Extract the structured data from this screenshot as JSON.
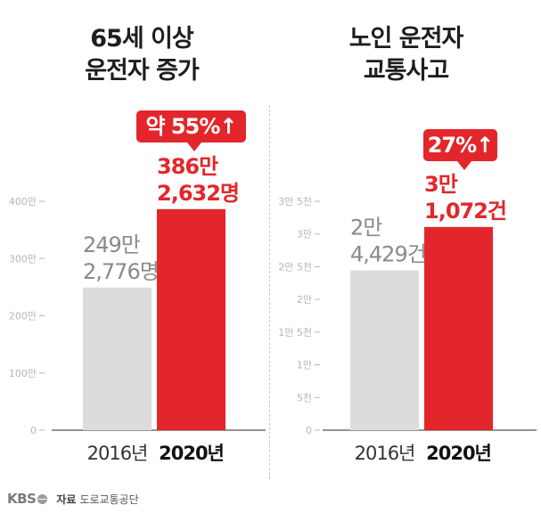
{
  "colors": {
    "accent_red": "#e3262b",
    "bar_gray": "#dcdcdc",
    "axis_gray": "#b5b5b5",
    "text_gray": "#8a8a8a"
  },
  "left_panel": {
    "title_line1": "65세 이상",
    "title_line2": "운전자 증가",
    "callout": "약 55%↑"
  },
  "right_panel": {
    "title_line1": "노인 운전자",
    "title_line2": "교통사고",
    "callout": "27%↑"
  },
  "chart_data": [
    {
      "type": "bar",
      "title": "65세 이상 운전자 증가",
      "categories": [
        "2016년",
        "2020년"
      ],
      "values": [
        2492776,
        3862632
      ],
      "value_labels": [
        [
          "249만",
          "2,776명"
        ],
        [
          "386만",
          "2,632명"
        ]
      ],
      "y_ticks": [
        0,
        1000000,
        2000000,
        3000000,
        4000000
      ],
      "y_tick_labels": [
        "0",
        "100만",
        "200만",
        "300만",
        "400만"
      ],
      "ylim": [
        0,
        4000000
      ],
      "annotation": "약 55%↑"
    },
    {
      "type": "bar",
      "title": "노인 운전자 교통사고",
      "categories": [
        "2016년",
        "2020년"
      ],
      "values": [
        24429,
        31072
      ],
      "value_labels": [
        [
          "2만",
          "4,429건"
        ],
        [
          "3만",
          "1,072건"
        ]
      ],
      "y_ticks": [
        0,
        5000,
        10000,
        15000,
        20000,
        25000,
        30000,
        35000
      ],
      "y_tick_labels": [
        "0",
        "5천",
        "1만",
        "1만 5천",
        "2만",
        "2만 5천",
        "3만",
        "3만 5천"
      ],
      "ylim": [
        0,
        35000
      ],
      "annotation": "27%↑"
    }
  ],
  "footer": {
    "logo": "KBS",
    "source_label": "자료",
    "source_name": "도로교통공단"
  }
}
